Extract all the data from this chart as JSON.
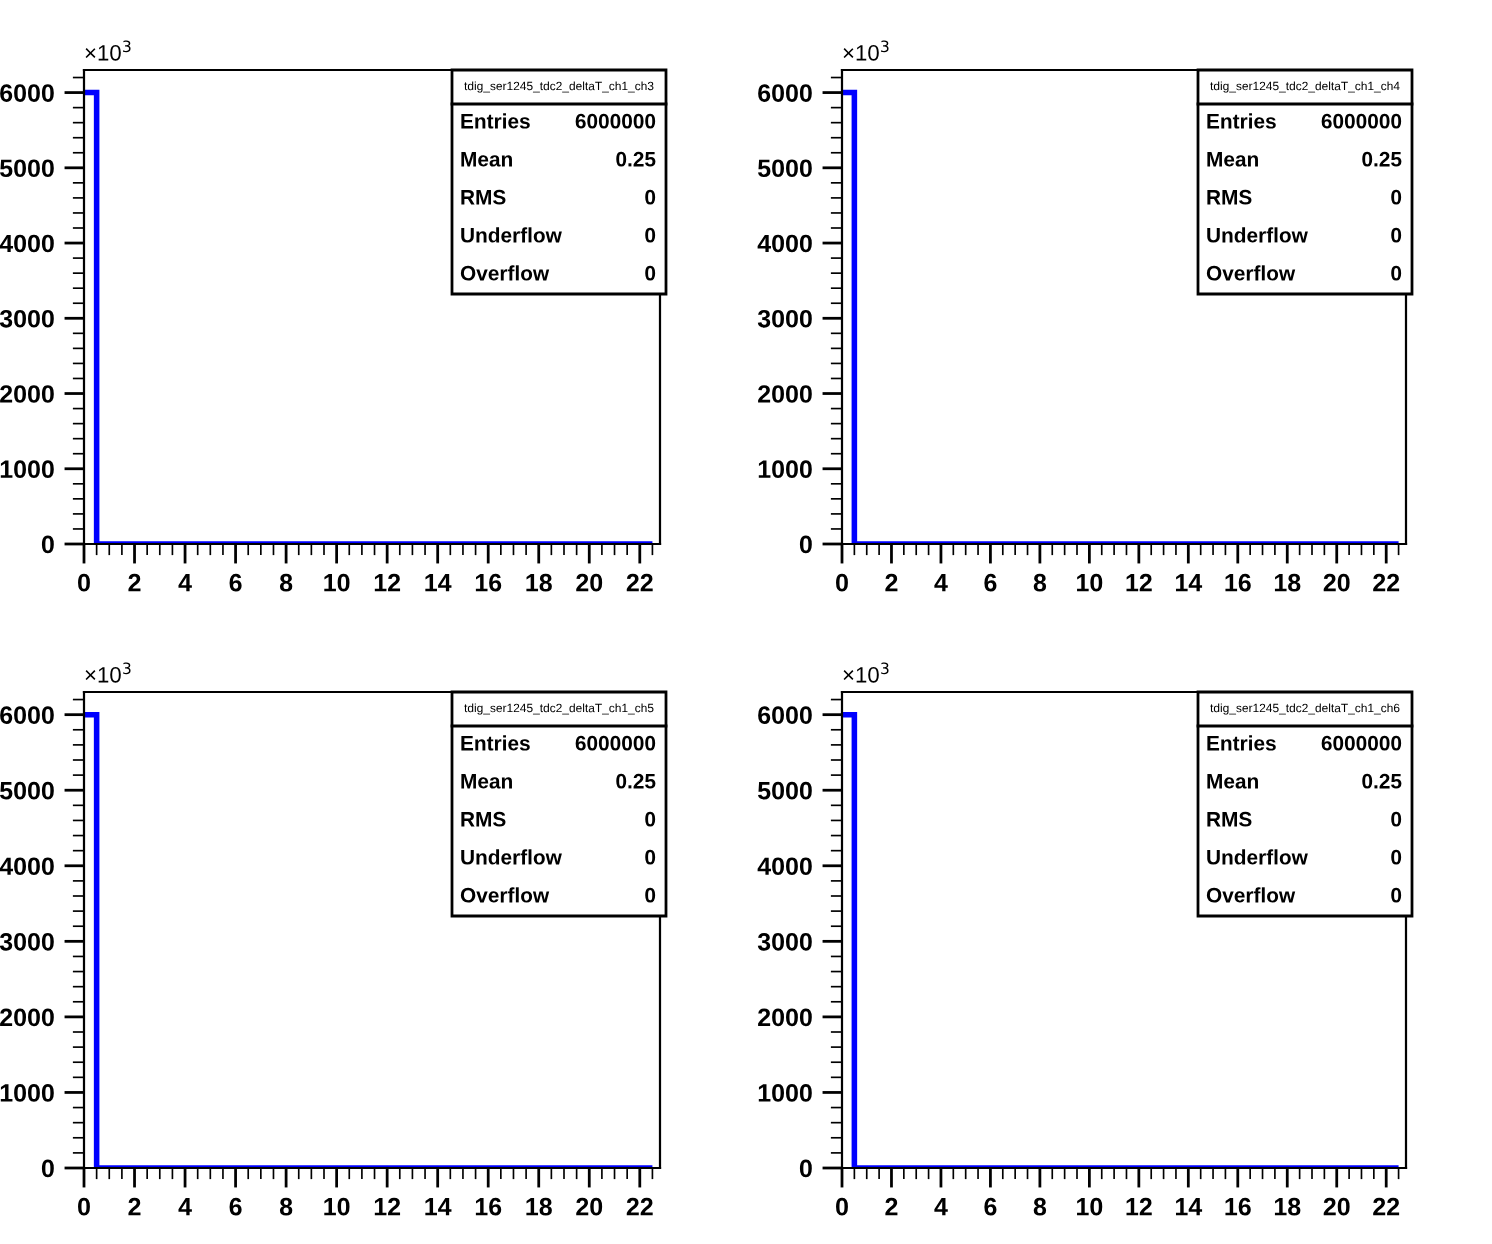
{
  "chart_data": [
    {
      "type": "histogram",
      "title": "tdig_ser1245_tdc2_deltaT_ch1_ch3",
      "bins": [
        0,
        0.5,
        1,
        1.5,
        2,
        2.5,
        3,
        3.5,
        4,
        4.5,
        5,
        5.5,
        6,
        6.5,
        7,
        7.5,
        8,
        8.5,
        9,
        9.5,
        10,
        10.5,
        11,
        11.5,
        12,
        12.5,
        13,
        13.5,
        14,
        14.5,
        15,
        15.5,
        16,
        16.5,
        17,
        17.5,
        18,
        18.5,
        19,
        19.5,
        20,
        20.5,
        21,
        21.5,
        22,
        22.5
      ],
      "values": [
        6000,
        0,
        0,
        0,
        0,
        0,
        0,
        0,
        0,
        0,
        0,
        0,
        0,
        0,
        0,
        0,
        0,
        0,
        0,
        0,
        0,
        0,
        0,
        0,
        0,
        0,
        0,
        0,
        0,
        0,
        0,
        0,
        0,
        0,
        0,
        0,
        0,
        0,
        0,
        0,
        0,
        0,
        0,
        0,
        0
      ],
      "color": "#0000ff",
      "xlim": [
        0,
        22.8
      ],
      "xticks": [
        0,
        2,
        4,
        6,
        8,
        10,
        12,
        14,
        16,
        18,
        20,
        22
      ],
      "ylim": [
        0,
        6300
      ],
      "yticks": [
        0,
        1000,
        2000,
        3000,
        4000,
        5000,
        6000
      ],
      "grid": false,
      "annotations": [
        "×10$^{3}$",
        "Entries",
        "6000000",
        "Mean",
        "0.25",
        "RMS",
        "0",
        "Underflow",
        "0",
        "Overflow",
        "0"
      ]
    },
    {
      "type": "histogram",
      "title": "tdig_ser1245_tdc2_deltaT_ch1_ch4",
      "bins": [
        0,
        0.5,
        1,
        1.5,
        2,
        2.5,
        3,
        3.5,
        4,
        4.5,
        5,
        5.5,
        6,
        6.5,
        7,
        7.5,
        8,
        8.5,
        9,
        9.5,
        10,
        10.5,
        11,
        11.5,
        12,
        12.5,
        13,
        13.5,
        14,
        14.5,
        15,
        15.5,
        16,
        16.5,
        17,
        17.5,
        18,
        18.5,
        19,
        19.5,
        20,
        20.5,
        21,
        21.5,
        22,
        22.5
      ],
      "values": [
        6000,
        0,
        0,
        0,
        0,
        0,
        0,
        0,
        0,
        0,
        0,
        0,
        0,
        0,
        0,
        0,
        0,
        0,
        0,
        0,
        0,
        0,
        0,
        0,
        0,
        0,
        0,
        0,
        0,
        0,
        0,
        0,
        0,
        0,
        0,
        0,
        0,
        0,
        0,
        0,
        0,
        0,
        0,
        0,
        0
      ],
      "color": "#0000ff",
      "xlim": [
        0,
        22.8
      ],
      "xticks": [
        0,
        2,
        4,
        6,
        8,
        10,
        12,
        14,
        16,
        18,
        20,
        22
      ],
      "ylim": [
        0,
        6300
      ],
      "yticks": [
        0,
        1000,
        2000,
        3000,
        4000,
        5000,
        6000
      ],
      "grid": false,
      "annotations": [
        "×10$^{3}$",
        "Entries",
        "6000000",
        "Mean",
        "0.25",
        "RMS",
        "0",
        "Underflow",
        "0",
        "Overflow",
        "0"
      ]
    },
    {
      "type": "histogram",
      "title": "tdig_ser1245_tdc2_deltaT_ch1_ch5",
      "bins": [
        0,
        0.5,
        1,
        1.5,
        2,
        2.5,
        3,
        3.5,
        4,
        4.5,
        5,
        5.5,
        6,
        6.5,
        7,
        7.5,
        8,
        8.5,
        9,
        9.5,
        10,
        10.5,
        11,
        11.5,
        12,
        12.5,
        13,
        13.5,
        14,
        14.5,
        15,
        15.5,
        16,
        16.5,
        17,
        17.5,
        18,
        18.5,
        19,
        19.5,
        20,
        20.5,
        21,
        21.5,
        22,
        22.5
      ],
      "values": [
        6000,
        0,
        0,
        0,
        0,
        0,
        0,
        0,
        0,
        0,
        0,
        0,
        0,
        0,
        0,
        0,
        0,
        0,
        0,
        0,
        0,
        0,
        0,
        0,
        0,
        0,
        0,
        0,
        0,
        0,
        0,
        0,
        0,
        0,
        0,
        0,
        0,
        0,
        0,
        0,
        0,
        0,
        0,
        0,
        0
      ],
      "color": "#0000ff",
      "xlim": [
        0,
        22.8
      ],
      "xticks": [
        0,
        2,
        4,
        6,
        8,
        10,
        12,
        14,
        16,
        18,
        20,
        22
      ],
      "ylim": [
        0,
        6300
      ],
      "yticks": [
        0,
        1000,
        2000,
        3000,
        4000,
        5000,
        6000
      ],
      "grid": false,
      "annotations": [
        "×10$^{3}$",
        "Entries",
        "6000000",
        "Mean",
        "0.25",
        "RMS",
        "0",
        "Underflow",
        "0",
        "Overflow",
        "0"
      ]
    },
    {
      "type": "histogram",
      "title": "tdig_ser1245_tdc2_deltaT_ch1_ch6",
      "bins": [
        0,
        0.5,
        1,
        1.5,
        2,
        2.5,
        3,
        3.5,
        4,
        4.5,
        5,
        5.5,
        6,
        6.5,
        7,
        7.5,
        8,
        8.5,
        9,
        9.5,
        10,
        10.5,
        11,
        11.5,
        12,
        12.5,
        13,
        13.5,
        14,
        14.5,
        15,
        15.5,
        16,
        16.5,
        17,
        17.5,
        18,
        18.5,
        19,
        19.5,
        20,
        20.5,
        21,
        21.5,
        22,
        22.5
      ],
      "values": [
        6000,
        0,
        0,
        0,
        0,
        0,
        0,
        0,
        0,
        0,
        0,
        0,
        0,
        0,
        0,
        0,
        0,
        0,
        0,
        0,
        0,
        0,
        0,
        0,
        0,
        0,
        0,
        0,
        0,
        0,
        0,
        0,
        0,
        0,
        0,
        0,
        0,
        0,
        0,
        0,
        0,
        0,
        0,
        0,
        0
      ],
      "color": "#0000ff",
      "xlim": [
        0,
        22.8
      ],
      "xticks": [
        0,
        2,
        4,
        6,
        8,
        10,
        12,
        14,
        16,
        18,
        20,
        22
      ],
      "ylim": [
        0,
        6300
      ],
      "yticks": [
        0,
        1000,
        2000,
        3000,
        4000,
        5000,
        6000
      ],
      "grid": false,
      "annotations": [
        "×10$^{3}$",
        "Entries",
        "6000000",
        "Mean",
        "0.25",
        "RMS",
        "0",
        "Underflow",
        "0",
        "Overflow",
        "0"
      ]
    }
  ]
}
